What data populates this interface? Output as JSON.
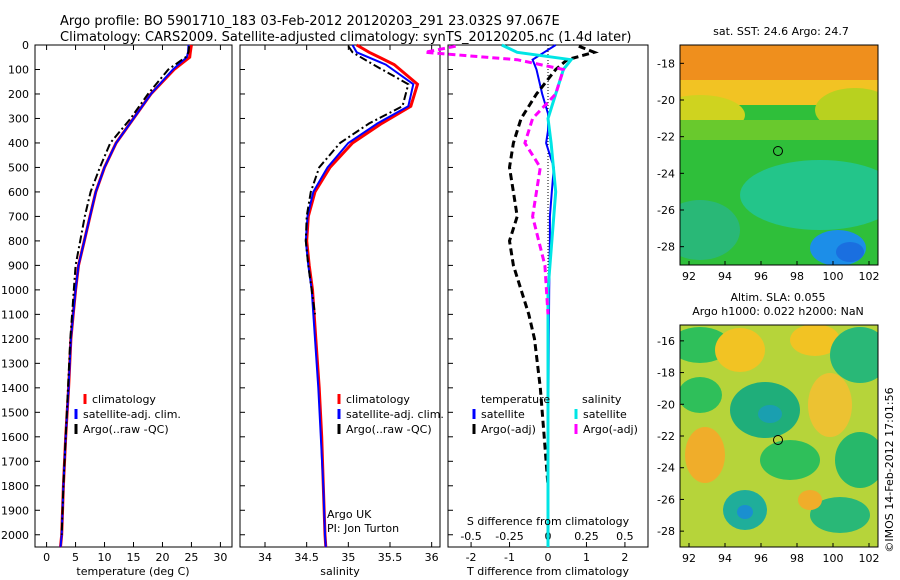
{
  "title_line1": "Argo profile: BO 5901710_183 03-Feb-2012 20120203_291 23.032S 97.067E",
  "title_line2": "Climatology: CARS2009. Satellite-adjusted climatology: synTS_20120205.nc (1.4d later)",
  "footer": "©IMOS 14-Feb-2012 17:01:56",
  "colors": {
    "climatology": "#ff0000",
    "satellite": "#0000ff",
    "argo": "#000000",
    "sat_salt": "#00e5e5",
    "argo_salt": "#ff00ff"
  },
  "chart_data": [
    {
      "type": "line",
      "name": "temperature",
      "xlabel": "temperature (deg C)",
      "ylabel": "",
      "xlim": [
        -2,
        32
      ],
      "ylim": [
        2050,
        0
      ],
      "xticks": [
        "0",
        "5",
        "10",
        "15",
        "20",
        "25",
        "30"
      ],
      "yticks": [
        "0",
        "100",
        "200",
        "300",
        "400",
        "500",
        "600",
        "700",
        "800",
        "900",
        "1000",
        "1100",
        "1200",
        "1300",
        "1400",
        "1500",
        "1600",
        "1700",
        "1800",
        "1900",
        "2000"
      ],
      "legend": [
        "climatology",
        "satellite-adj. clim.",
        "Argo(..raw -QC)"
      ],
      "annotations": [],
      "series": [
        {
          "name": "climatology",
          "style": "solid",
          "x": [
            25.0,
            24.8,
            24.7,
            22.0,
            18.0,
            15.0,
            12.0,
            10.0,
            8.5,
            7.5,
            6.5,
            5.5,
            5.0,
            4.6,
            4.2,
            3.8,
            3.3,
            2.9,
            2.6,
            2.4
          ],
          "y": [
            0,
            30,
            50,
            100,
            200,
            300,
            400,
            500,
            600,
            700,
            800,
            900,
            1000,
            1100,
            1200,
            1400,
            1600,
            1800,
            2000,
            2050
          ]
        },
        {
          "name": "satellite-adj. clim.",
          "style": "solid",
          "x": [
            24.5,
            24.4,
            24.2,
            21.8,
            18.0,
            15.0,
            12.0,
            10.0,
            8.5,
            7.5,
            6.5,
            5.5,
            5.0,
            4.6,
            4.2,
            3.8,
            3.3,
            2.9,
            2.6,
            2.4
          ],
          "y": [
            0,
            30,
            50,
            100,
            200,
            300,
            400,
            500,
            600,
            700,
            800,
            900,
            1000,
            1100,
            1200,
            1400,
            1600,
            1800,
            2000,
            2050
          ]
        },
        {
          "name": "Argo(..raw -QC)",
          "style": "dashdot",
          "x": [
            24.6,
            24.5,
            24.0,
            21.0,
            17.5,
            14.5,
            11.0,
            9.2,
            7.6,
            6.6,
            5.8,
            5.0,
            4.7,
            4.4,
            4.1,
            3.7,
            3.3,
            2.9,
            2.6
          ],
          "y": [
            5,
            30,
            50,
            100,
            200,
            300,
            400,
            500,
            600,
            700,
            800,
            900,
            1000,
            1100,
            1200,
            1400,
            1600,
            1800,
            2000
          ]
        }
      ]
    },
    {
      "type": "line",
      "name": "salinity",
      "xlabel": "salinity",
      "ylabel": "",
      "xlim": [
        33.7,
        36.1
      ],
      "ylim": [
        2050,
        0
      ],
      "xticks": [
        "34",
        "34.5",
        "35",
        "35.5",
        "36"
      ],
      "legend": [
        "climatology",
        "satellite-adj. clim.",
        "Argo(..raw -QC)"
      ],
      "annotations": [
        "Argo UK",
        "PI: Jon Turton"
      ],
      "series": [
        {
          "name": "climatology",
          "style": "solid",
          "x": [
            35.1,
            35.25,
            35.55,
            35.83,
            35.75,
            35.4,
            35.05,
            34.78,
            34.6,
            34.52,
            34.5,
            34.53,
            34.57,
            34.61,
            34.65,
            34.68,
            34.7,
            34.72,
            34.73
          ],
          "y": [
            0,
            30,
            80,
            160,
            250,
            320,
            400,
            500,
            600,
            700,
            800,
            900,
            1000,
            1200,
            1400,
            1600,
            1800,
            2000,
            2050
          ]
        },
        {
          "name": "satellite-adj. clim.",
          "style": "solid",
          "x": [
            35.05,
            35.1,
            35.45,
            35.78,
            35.72,
            35.35,
            35.0,
            34.75,
            34.58,
            34.51,
            34.49,
            34.52,
            34.56,
            34.6,
            34.64,
            34.67,
            34.7,
            34.72,
            34.73
          ],
          "y": [
            0,
            30,
            80,
            160,
            250,
            320,
            400,
            500,
            600,
            700,
            800,
            900,
            1000,
            1200,
            1400,
            1600,
            1800,
            2000,
            2050
          ]
        },
        {
          "name": "Argo(..raw -QC)",
          "style": "dashdot",
          "x": [
            35.0,
            35.05,
            35.3,
            35.72,
            35.65,
            35.25,
            34.9,
            34.65,
            34.55,
            34.5,
            34.49,
            34.52,
            34.56,
            34.6
          ],
          "y": [
            5,
            30,
            80,
            160,
            250,
            320,
            400,
            500,
            600,
            700,
            800,
            900,
            1000,
            1100
          ]
        }
      ]
    },
    {
      "type": "line",
      "name": "differences",
      "xlabel": "T difference from climatology",
      "xlabel_top": "S difference from climatology",
      "xlim": [
        -2.6,
        2.6
      ],
      "ylim": [
        2050,
        0
      ],
      "xticks": [
        "-2",
        "-1",
        "0",
        "1",
        "2"
      ],
      "xticks_salinity": [
        "-0.5",
        "-0.25",
        "0",
        "0.25",
        "0.5"
      ],
      "legend_titles": [
        "temperature",
        "salinity"
      ],
      "legend": [
        "satellite",
        "Argo(-adj)",
        "satellite",
        "Argo(-adj)"
      ],
      "series": [
        {
          "name": "temperature satellite",
          "style": "solid",
          "x": [
            0.2,
            -0.1,
            -0.4,
            -0.3,
            -0.15,
            0.0,
            0.0,
            -0.05,
            0.15,
            0.1,
            0.05,
            0.05,
            0.03,
            0.02,
            0.01,
            0.0,
            0.0
          ],
          "y": [
            0,
            30,
            60,
            100,
            200,
            280,
            350,
            400,
            500,
            600,
            700,
            800,
            1000,
            1200,
            1500,
            1800,
            2050
          ]
        },
        {
          "name": "temperature Argo(-adj)",
          "style": "dashed",
          "x": [
            0.8,
            1.2,
            0.5,
            0.2,
            -0.3,
            -0.7,
            -0.9,
            -1.0,
            -0.9,
            -0.8,
            -1.0,
            -0.9,
            -0.7,
            -0.5,
            -0.35,
            -0.2,
            -0.1,
            0.0,
            0.0
          ],
          "y": [
            5,
            30,
            60,
            100,
            200,
            300,
            400,
            500,
            600,
            700,
            800,
            900,
            1000,
            1100,
            1200,
            1400,
            1600,
            1800,
            2000
          ]
        },
        {
          "name": "salinity satellite",
          "style": "solid",
          "x": [
            -0.3,
            -0.2,
            0.15,
            0.1,
            0.05,
            0.0,
            0.02,
            0.05,
            0.0,
            0.0
          ],
          "y": [
            0,
            30,
            60,
            100,
            200,
            300,
            400,
            600,
            1000,
            2050
          ]
        },
        {
          "name": "salinity Argo(-adj)",
          "style": "dashed",
          "x": [
            -0.6,
            -0.8,
            -0.2,
            0.1,
            0.05,
            -0.1,
            -0.15,
            -0.05,
            -0.1,
            -0.02,
            0.0
          ],
          "y": [
            5,
            30,
            60,
            100,
            200,
            300,
            400,
            500,
            700,
            900,
            1100
          ]
        }
      ]
    },
    {
      "type": "heatmap",
      "name": "sst-map",
      "title": "sat. SST: 24.6  Argo: 24.7",
      "xticks": [
        "92",
        "94",
        "96",
        "98",
        "100",
        "102"
      ],
      "yticks": [
        "-18",
        "-20",
        "-22",
        "-24",
        "-26",
        "-28"
      ],
      "xlim": [
        91.5,
        102.5
      ],
      "ylim": [
        -29,
        -17
      ]
    },
    {
      "type": "heatmap",
      "name": "sla-map",
      "title_line1": "Altim. SLA: 0.055",
      "title_line2": "Argo h1000: 0.022 h2000: NaN",
      "xticks": [
        "92",
        "94",
        "96",
        "98",
        "100",
        "102"
      ],
      "yticks": [
        "-16",
        "-18",
        "-20",
        "-22",
        "-24",
        "-26",
        "-28"
      ],
      "xlim": [
        91.5,
        102.5
      ],
      "ylim": [
        -29,
        -15
      ]
    }
  ]
}
